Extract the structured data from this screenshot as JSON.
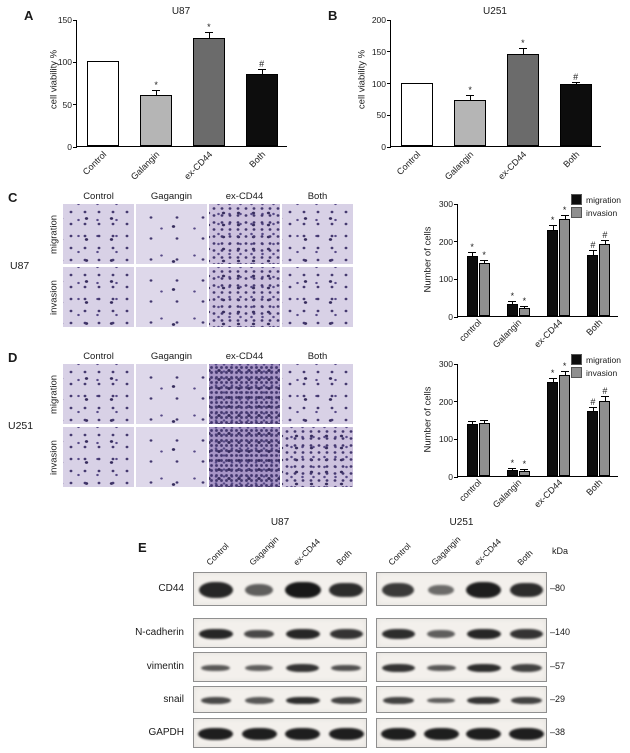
{
  "labels": {
    "A": "A",
    "B": "B",
    "C": "C",
    "D": "D",
    "E": "E"
  },
  "chart_data": [
    {
      "type": "bar",
      "title": "U87",
      "ylabel": "cell viability %",
      "ylim": [
        0,
        150
      ],
      "yticks": [
        0,
        50,
        100,
        150
      ],
      "categories": [
        "Control",
        "Galangin",
        "ex-CD44",
        "Both"
      ],
      "values": [
        100,
        60,
        127,
        85
      ],
      "errors": [
        0,
        5,
        7,
        5
      ],
      "sig": [
        "",
        "*",
        "*",
        "#"
      ],
      "bar_colors": [
        "#ffffff",
        "#b5b5b5",
        "#6b6b6b",
        "#0d0d0d"
      ],
      "grid": false
    },
    {
      "type": "bar",
      "title": "U251",
      "ylabel": "cell viability %",
      "ylim": [
        0,
        200
      ],
      "yticks": [
        0,
        50,
        100,
        150,
        200
      ],
      "categories": [
        "Control",
        "Galangin",
        "ex-CD44",
        "Both"
      ],
      "values": [
        100,
        72,
        145,
        97
      ],
      "errors": [
        0,
        6,
        8,
        3
      ],
      "sig": [
        "",
        "*",
        "*",
        "#"
      ],
      "bar_colors": [
        "#ffffff",
        "#b5b5b5",
        "#6b6b6b",
        "#0d0d0d"
      ],
      "grid": false
    },
    {
      "type": "grouped_bar",
      "title": "",
      "ylabel": "Number of cells",
      "ylim": [
        0,
        300
      ],
      "yticks": [
        0,
        100,
        200,
        300
      ],
      "categories": [
        "control",
        "Galangin",
        "ex-CD44",
        "Both"
      ],
      "series": [
        {
          "name": "migration",
          "color": "#0d0d0d",
          "values": [
            160,
            33,
            228,
            163
          ],
          "errors": [
            8,
            5,
            10,
            10
          ],
          "sig": [
            "*",
            "*",
            "*",
            "#"
          ]
        },
        {
          "name": "invasion",
          "color": "#8f8f8f",
          "values": [
            140,
            20,
            257,
            190
          ],
          "errors": [
            6,
            4,
            8,
            8
          ],
          "sig": [
            "*",
            "*",
            "*",
            "#"
          ]
        }
      ],
      "legend_position": "top-right",
      "grid": false
    },
    {
      "type": "grouped_bar",
      "title": "",
      "ylabel": "Number of cells",
      "ylim": [
        0,
        300
      ],
      "yticks": [
        0,
        100,
        200,
        300
      ],
      "categories": [
        "control",
        "Galangin",
        "ex-CD44",
        "Both"
      ],
      "series": [
        {
          "name": "migration",
          "color": "#0d0d0d",
          "values": [
            138,
            15,
            250,
            172
          ],
          "errors": [
            6,
            4,
            8,
            8
          ],
          "sig": [
            "",
            "*",
            "*",
            "#"
          ]
        },
        {
          "name": "invasion",
          "color": "#8f8f8f",
          "values": [
            140,
            12,
            268,
            200
          ],
          "errors": [
            5,
            3,
            8,
            10
          ],
          "sig": [
            "",
            "*",
            "*",
            "#"
          ]
        }
      ],
      "legend_position": "top-right",
      "grid": false
    }
  ],
  "panelC": {
    "cell_line": "U87",
    "col_headers": [
      "Control",
      "Gagangin",
      "ex-CD44",
      "Both"
    ],
    "row_labels": [
      "migration",
      "invasion"
    ],
    "densities": [
      [
        "medium",
        "sparse",
        "dense",
        "medium"
      ],
      [
        "medium",
        "sparse",
        "dense",
        "medium"
      ]
    ]
  },
  "panelD": {
    "cell_line": "U251",
    "col_headers": [
      "Control",
      "Gagangin",
      "ex-CD44",
      "Both"
    ],
    "row_labels": [
      "migration",
      "invasion"
    ],
    "densities": [
      [
        "medium",
        "sparse",
        "vdense",
        "medium"
      ],
      [
        "medium",
        "sparse",
        "vdense",
        "dense"
      ]
    ]
  },
  "panelE": {
    "groups": [
      "U87",
      "U251"
    ],
    "lane_labels": [
      "Control",
      "Gagangin",
      "ex-CD44",
      "Both"
    ],
    "kda_header": "kDa",
    "rows": [
      {
        "label": "CD44",
        "kda": "–80",
        "u87": [
          0.9,
          0.5,
          1.0,
          0.85
        ],
        "u251": [
          0.75,
          0.4,
          0.95,
          0.85
        ]
      },
      {
        "label": "N-cadherin",
        "kda": "–140",
        "u87": [
          0.9,
          0.65,
          0.9,
          0.8
        ],
        "u251": [
          0.85,
          0.5,
          0.9,
          0.8
        ]
      },
      {
        "label": "vimentin",
        "kda": "–57",
        "u87": [
          0.55,
          0.5,
          0.8,
          0.6
        ],
        "u251": [
          0.8,
          0.55,
          0.85,
          0.7
        ]
      },
      {
        "label": "snail",
        "kda": "–29",
        "u87": [
          0.65,
          0.55,
          0.85,
          0.7
        ],
        "u251": [
          0.7,
          0.5,
          0.8,
          0.7
        ]
      },
      {
        "label": "GAPDH",
        "kda": "–38",
        "u87": [
          0.95,
          0.95,
          0.95,
          0.95
        ],
        "u251": [
          0.95,
          0.95,
          0.95,
          0.95
        ]
      }
    ]
  }
}
